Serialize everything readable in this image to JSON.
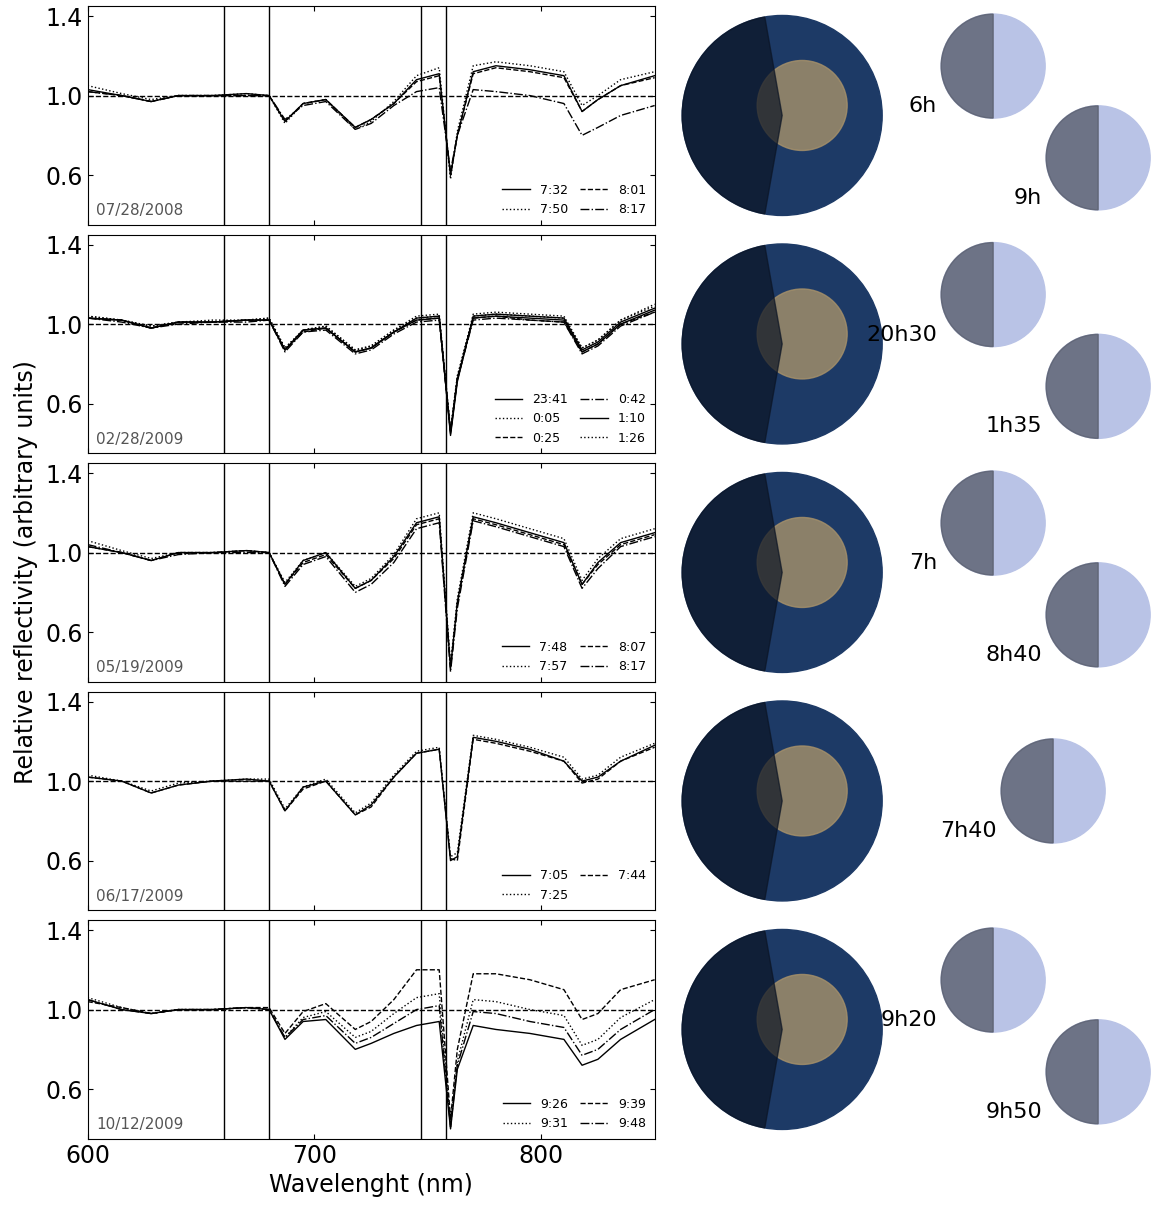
{
  "ylabel": "Relative reflectivity (arbitrary units)",
  "chart_data": [
    {
      "type": "line",
      "annotation": "07/28/2008",
      "tick_labels": "y",
      "legend": "lower right",
      "xlim": [
        600,
        850
      ],
      "xticks": [
        600,
        700,
        800
      ],
      "ylim": [
        0.35,
        1.45
      ],
      "yticks": [
        {
          "value": 0.6,
          "label": "0.6"
        },
        {
          "value": 1.0,
          "label": "1.0"
        },
        {
          "value": 1.4,
          "label": "1.4"
        }
      ],
      "reference_lines": {
        "x": [
          660,
          680,
          747,
          758
        ],
        "y": 1.0
      },
      "globe_labels": [
        "6h",
        "9h"
      ],
      "x": [
        600,
        615,
        628,
        640,
        655,
        670,
        680,
        687,
        695,
        705,
        718,
        725,
        735,
        745,
        755,
        760,
        763,
        770,
        780,
        795,
        810,
        818,
        825,
        835,
        850
      ],
      "series": [
        {
          "name": "7:32",
          "color": "#000000",
          "line_style": "solid",
          "values": [
            1.03,
            1.0,
            0.97,
            1.0,
            1.0,
            1.01,
            1.0,
            0.87,
            0.96,
            0.98,
            0.84,
            0.88,
            0.96,
            1.08,
            1.11,
            0.6,
            0.8,
            1.12,
            1.15,
            1.13,
            1.1,
            0.92,
            0.98,
            1.05,
            1.1
          ]
        },
        {
          "name": "7:50",
          "color": "#000000",
          "line_style": "dotted",
          "values": [
            1.05,
            1.01,
            0.98,
            1.0,
            1.0,
            1.01,
            1.0,
            0.86,
            0.96,
            0.98,
            0.83,
            0.87,
            0.97,
            1.1,
            1.14,
            0.58,
            0.82,
            1.15,
            1.17,
            1.15,
            1.12,
            0.95,
            1.0,
            1.08,
            1.12
          ]
        },
        {
          "name": "8:01",
          "color": "#000000",
          "line_style": "dashed",
          "values": [
            1.02,
            1.0,
            0.97,
            1.0,
            1.0,
            1.0,
            1.0,
            0.87,
            0.96,
            0.98,
            0.84,
            0.88,
            0.96,
            1.07,
            1.1,
            0.6,
            0.8,
            1.11,
            1.14,
            1.12,
            1.09,
            0.92,
            0.98,
            1.05,
            1.09
          ]
        },
        {
          "name": "8:17",
          "color": "#000000",
          "line_style": "dashdot",
          "values": [
            1.02,
            1.0,
            0.97,
            1.0,
            1.0,
            1.0,
            1.0,
            0.88,
            0.95,
            0.97,
            0.83,
            0.86,
            0.95,
            1.02,
            1.04,
            0.62,
            0.8,
            1.03,
            1.02,
            1.0,
            0.96,
            0.8,
            0.84,
            0.9,
            0.95
          ]
        }
      ]
    },
    {
      "type": "line",
      "annotation": "02/28/2009",
      "tick_labels": "y",
      "legend": "lower right",
      "xlim": [
        600,
        850
      ],
      "xticks": [
        600,
        700,
        800
      ],
      "ylim": [
        0.35,
        1.45
      ],
      "yticks": [
        {
          "value": 0.6,
          "label": "0.6"
        },
        {
          "value": 1.0,
          "label": "1.0"
        },
        {
          "value": 1.4,
          "label": "1.4"
        }
      ],
      "reference_lines": {
        "x": [
          660,
          680,
          747,
          758
        ],
        "y": 1.0
      },
      "globe_labels": [
        "20h30",
        "1h35"
      ],
      "x": [
        600,
        615,
        628,
        640,
        655,
        670,
        680,
        687,
        695,
        705,
        718,
        725,
        735,
        745,
        755,
        760,
        763,
        770,
        780,
        795,
        810,
        818,
        825,
        835,
        850
      ],
      "series": [
        {
          "name": "23:41",
          "color": "#000000",
          "line_style": "solid",
          "values": [
            1.03,
            1.02,
            0.98,
            1.01,
            1.01,
            1.02,
            1.02,
            0.87,
            0.97,
            0.98,
            0.86,
            0.88,
            0.96,
            1.02,
            1.03,
            0.45,
            0.72,
            1.03,
            1.04,
            1.03,
            1.02,
            0.86,
            0.9,
            1.0,
            1.07
          ]
        },
        {
          "name": "0:05",
          "color": "#000000",
          "line_style": "dotted",
          "values": [
            1.04,
            1.02,
            0.99,
            1.01,
            1.01,
            1.02,
            1.03,
            0.88,
            0.97,
            0.99,
            0.87,
            0.89,
            0.97,
            1.03,
            1.04,
            0.47,
            0.74,
            1.04,
            1.05,
            1.04,
            1.03,
            0.88,
            0.92,
            1.02,
            1.09
          ]
        },
        {
          "name": "0:25",
          "color": "#000000",
          "line_style": "dashed",
          "values": [
            1.03,
            1.02,
            0.98,
            1.01,
            1.01,
            1.02,
            1.02,
            0.87,
            0.96,
            0.98,
            0.86,
            0.88,
            0.96,
            1.02,
            1.03,
            0.46,
            0.73,
            1.03,
            1.04,
            1.02,
            1.01,
            0.86,
            0.9,
            1.0,
            1.06
          ]
        },
        {
          "name": "0:42",
          "color": "#000000",
          "line_style": "dashdot",
          "values": [
            1.03,
            1.01,
            0.98,
            1.0,
            1.01,
            1.01,
            1.02,
            0.86,
            0.96,
            0.97,
            0.85,
            0.87,
            0.95,
            1.01,
            1.02,
            0.46,
            0.72,
            1.02,
            1.03,
            1.02,
            1.01,
            0.85,
            0.89,
            0.99,
            1.06
          ]
        },
        {
          "name": "1:10",
          "color": "#000000",
          "line_style": "solid",
          "values": [
            1.03,
            1.02,
            0.98,
            1.01,
            1.01,
            1.02,
            1.02,
            0.87,
            0.97,
            0.98,
            0.86,
            0.88,
            0.96,
            1.03,
            1.04,
            0.44,
            0.71,
            1.04,
            1.05,
            1.04,
            1.03,
            0.87,
            0.91,
            1.01,
            1.08
          ]
        },
        {
          "name": "1:26",
          "color": "#000000",
          "line_style": "dotted",
          "values": [
            1.04,
            1.02,
            0.99,
            1.01,
            1.02,
            1.02,
            1.03,
            0.88,
            0.97,
            0.99,
            0.87,
            0.89,
            0.97,
            1.04,
            1.05,
            0.46,
            0.73,
            1.05,
            1.06,
            1.05,
            1.04,
            0.88,
            0.92,
            1.02,
            1.1
          ]
        }
      ]
    },
    {
      "type": "line",
      "annotation": "05/19/2009",
      "tick_labels": "y",
      "legend": "lower right",
      "xlim": [
        600,
        850
      ],
      "xticks": [
        600,
        700,
        800
      ],
      "ylim": [
        0.35,
        1.45
      ],
      "yticks": [
        {
          "value": 0.6,
          "label": "0.6"
        },
        {
          "value": 1.0,
          "label": "1.0"
        },
        {
          "value": 1.4,
          "label": "1.4"
        }
      ],
      "reference_lines": {
        "x": [
          660,
          680,
          747,
          758
        ],
        "y": 1.0
      },
      "globe_labels": [
        "7h",
        "8h40"
      ],
      "x": [
        600,
        615,
        628,
        640,
        655,
        670,
        680,
        687,
        695,
        705,
        718,
        725,
        735,
        745,
        755,
        760,
        763,
        770,
        780,
        795,
        810,
        818,
        825,
        835,
        850
      ],
      "series": [
        {
          "name": "7:48",
          "color": "#000000",
          "line_style": "solid",
          "values": [
            1.03,
            1.0,
            0.96,
            1.0,
            1.0,
            1.01,
            1.0,
            0.84,
            0.96,
            1.0,
            0.82,
            0.86,
            0.98,
            1.15,
            1.18,
            0.42,
            0.75,
            1.18,
            1.15,
            1.1,
            1.05,
            0.84,
            0.95,
            1.05,
            1.1
          ]
        },
        {
          "name": "7:57",
          "color": "#000000",
          "line_style": "dotted",
          "values": [
            1.06,
            1.01,
            0.97,
            1.0,
            1.0,
            1.01,
            1.0,
            0.85,
            0.96,
            1.0,
            0.83,
            0.87,
            0.99,
            1.17,
            1.2,
            0.44,
            0.77,
            1.2,
            1.17,
            1.12,
            1.07,
            0.86,
            0.97,
            1.07,
            1.12
          ]
        },
        {
          "name": "8:07",
          "color": "#000000",
          "line_style": "dashed",
          "values": [
            1.03,
            1.0,
            0.96,
            1.0,
            1.0,
            1.01,
            1.0,
            0.84,
            0.95,
            0.99,
            0.82,
            0.86,
            0.97,
            1.14,
            1.17,
            0.42,
            0.74,
            1.17,
            1.14,
            1.09,
            1.04,
            0.84,
            0.94,
            1.04,
            1.09
          ]
        },
        {
          "name": "8:17",
          "color": "#000000",
          "line_style": "dashdot",
          "values": [
            1.04,
            1.0,
            0.96,
            0.99,
            1.0,
            1.0,
            1.0,
            0.83,
            0.94,
            0.98,
            0.8,
            0.84,
            0.95,
            1.12,
            1.15,
            0.4,
            0.72,
            1.16,
            1.13,
            1.08,
            1.03,
            0.82,
            0.92,
            1.03,
            1.08
          ]
        }
      ]
    },
    {
      "type": "line",
      "annotation": "06/17/2009",
      "tick_labels": "y",
      "legend": "lower right",
      "xlim": [
        600,
        850
      ],
      "xticks": [
        600,
        700,
        800
      ],
      "ylim": [
        0.35,
        1.45
      ],
      "yticks": [
        {
          "value": 0.6,
          "label": "0.6"
        },
        {
          "value": 1.0,
          "label": "1.0"
        },
        {
          "value": 1.4,
          "label": "1.4"
        }
      ],
      "reference_lines": {
        "x": [
          660,
          680,
          747,
          758
        ],
        "y": 1.0
      },
      "globe_labels": [
        "7h40"
      ],
      "x": [
        600,
        615,
        628,
        640,
        655,
        670,
        680,
        687,
        695,
        705,
        718,
        725,
        735,
        745,
        755,
        760,
        763,
        770,
        780,
        795,
        810,
        818,
        825,
        835,
        850
      ],
      "series": [
        {
          "name": "7:05",
          "color": "#000000",
          "line_style": "solid",
          "values": [
            1.02,
            1.0,
            0.94,
            0.98,
            1.0,
            1.01,
            1.0,
            0.85,
            0.97,
            1.0,
            0.83,
            0.88,
            1.02,
            1.14,
            1.16,
            0.6,
            0.62,
            1.22,
            1.2,
            1.16,
            1.1,
            1.0,
            1.02,
            1.1,
            1.18
          ]
        },
        {
          "name": "7:25",
          "color": "#000000",
          "line_style": "dotted",
          "values": [
            1.03,
            1.0,
            0.95,
            0.99,
            1.0,
            1.01,
            1.01,
            0.86,
            0.97,
            1.01,
            0.84,
            0.89,
            1.03,
            1.15,
            1.17,
            0.62,
            0.64,
            1.23,
            1.21,
            1.17,
            1.12,
            1.01,
            1.03,
            1.12,
            1.19
          ]
        },
        {
          "name": "7:44",
          "color": "#000000",
          "line_style": "dashed",
          "values": [
            1.02,
            1.0,
            0.94,
            0.98,
            1.0,
            1.0,
            1.0,
            0.85,
            0.96,
            1.0,
            0.83,
            0.87,
            1.02,
            1.14,
            1.16,
            0.61,
            0.6,
            1.21,
            1.19,
            1.15,
            1.1,
            0.99,
            1.01,
            1.1,
            1.17
          ]
        }
      ]
    },
    {
      "type": "line",
      "annotation": "10/12/2009",
      "legend": "lower right",
      "xlabel": "Wavelenght (nm)",
      "xlim": [
        600,
        850
      ],
      "xticks": [
        600,
        700,
        800
      ],
      "ylim": [
        0.35,
        1.45
      ],
      "yticks": [
        {
          "value": 0.6,
          "label": "0.6"
        },
        {
          "value": 1.0,
          "label": "1.0"
        },
        {
          "value": 1.4,
          "label": "1.4"
        }
      ],
      "reference_lines": {
        "x": [
          660,
          680,
          747,
          758
        ],
        "y": 1.0
      },
      "globe_labels": [
        "9h20",
        "9h50"
      ],
      "x": [
        600,
        615,
        628,
        640,
        655,
        670,
        680,
        687,
        695,
        705,
        718,
        725,
        735,
        745,
        755,
        760,
        763,
        770,
        780,
        795,
        810,
        818,
        825,
        835,
        850
      ],
      "series": [
        {
          "name": "9:26",
          "color": "#000000",
          "line_style": "solid",
          "values": [
            1.05,
            1.0,
            0.98,
            1.0,
            1.0,
            1.01,
            1.0,
            0.85,
            0.94,
            0.95,
            0.8,
            0.83,
            0.88,
            0.92,
            0.94,
            0.4,
            0.7,
            0.92,
            0.9,
            0.88,
            0.85,
            0.72,
            0.75,
            0.85,
            0.95
          ]
        },
        {
          "name": "9:31",
          "color": "#000000",
          "line_style": "dotted",
          "values": [
            1.06,
            1.01,
            0.98,
            1.0,
            1.0,
            1.01,
            1.0,
            0.86,
            0.96,
            0.99,
            0.86,
            0.89,
            0.98,
            1.06,
            1.08,
            0.42,
            0.74,
            1.05,
            1.04,
            1.0,
            0.97,
            0.82,
            0.85,
            0.96,
            1.05
          ]
        },
        {
          "name": "9:39",
          "color": "#000000",
          "line_style": "dashed",
          "values": [
            1.04,
            1.01,
            0.98,
            1.0,
            1.0,
            1.01,
            1.01,
            0.88,
            0.99,
            1.03,
            0.9,
            0.94,
            1.05,
            1.2,
            1.2,
            0.45,
            0.8,
            1.18,
            1.18,
            1.15,
            1.1,
            0.95,
            0.98,
            1.1,
            1.15
          ]
        },
        {
          "name": "9:48",
          "color": "#000000",
          "line_style": "dashdot",
          "values": [
            1.05,
            1.0,
            0.98,
            1.0,
            1.0,
            1.01,
            1.0,
            0.86,
            0.95,
            0.97,
            0.83,
            0.86,
            0.93,
            1.0,
            1.02,
            0.41,
            0.72,
            0.99,
            0.98,
            0.94,
            0.91,
            0.77,
            0.8,
            0.9,
            1.0
          ]
        }
      ]
    }
  ]
}
